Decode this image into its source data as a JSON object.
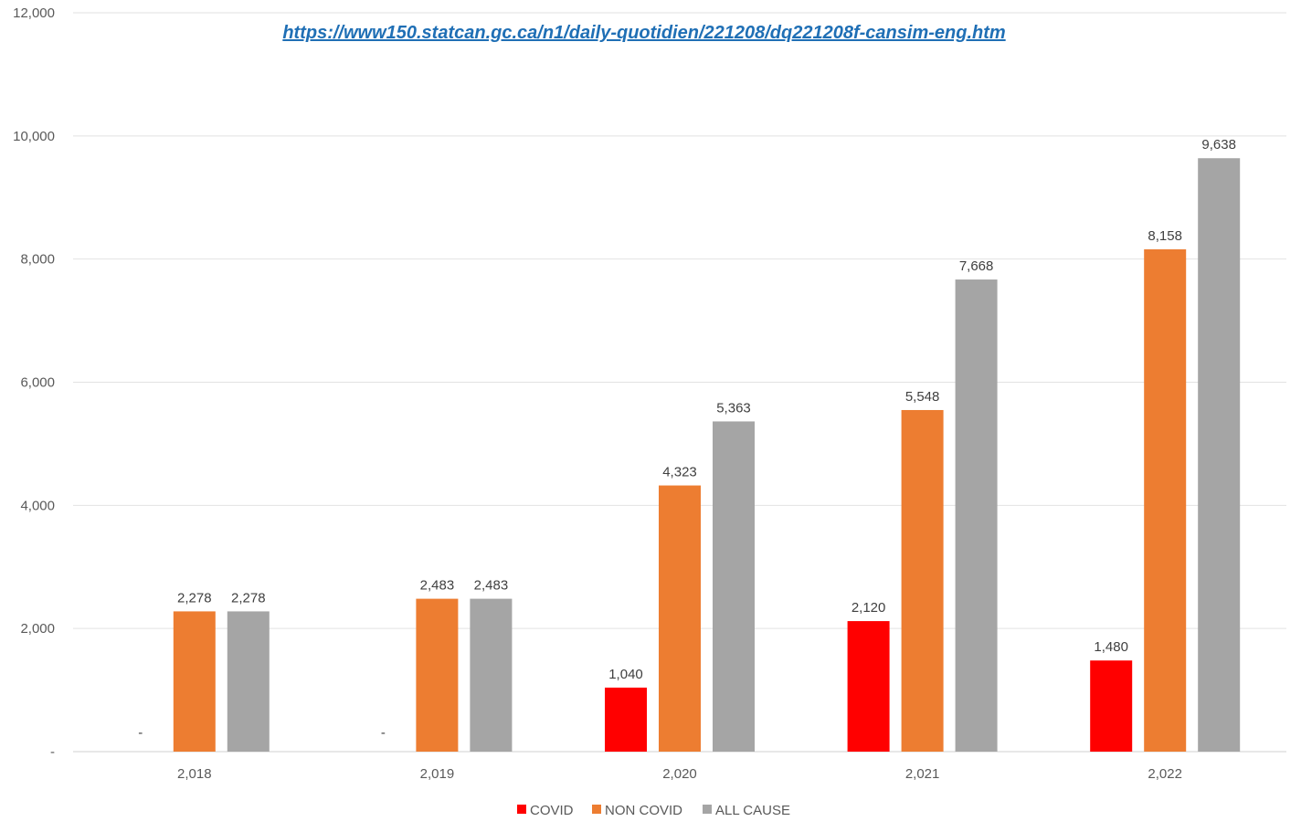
{
  "source_url": "https://www150.statcan.gc.ca/n1/daily-quotidien/221208/dq221208f-cansim-eng.htm",
  "chart_data": {
    "type": "bar",
    "categories": [
      "2,018",
      "2,019",
      "2,020",
      "2,021",
      "2,022"
    ],
    "series": [
      {
        "name": "COVID",
        "color": "#ff0000",
        "values": [
          0,
          0,
          1040,
          2120,
          1480
        ],
        "labels": [
          "-",
          "-",
          "1,040",
          "2,120",
          "1,480"
        ]
      },
      {
        "name": "NON COVID",
        "color": "#ed7d31",
        "values": [
          2278,
          2483,
          4323,
          5548,
          8158
        ],
        "labels": [
          "2,278",
          "2,483",
          "4,323",
          "5,548",
          "8,158"
        ]
      },
      {
        "name": "ALL CAUSE",
        "color": "#a5a5a5",
        "values": [
          2278,
          2483,
          5363,
          7668,
          9638
        ],
        "labels": [
          "2,278",
          "2,483",
          "5,363",
          "7,668",
          "9,638"
        ]
      }
    ],
    "ylim": [
      0,
      12000
    ],
    "yticks": [
      0,
      2000,
      4000,
      6000,
      8000,
      10000,
      12000
    ],
    "ytick_labels": [
      "-",
      "2,000",
      "4,000",
      "6,000",
      "8,000",
      "10,000",
      "12,000"
    ],
    "grid": true,
    "legend": "bottom",
    "title": "",
    "xlabel": "",
    "ylabel": ""
  }
}
